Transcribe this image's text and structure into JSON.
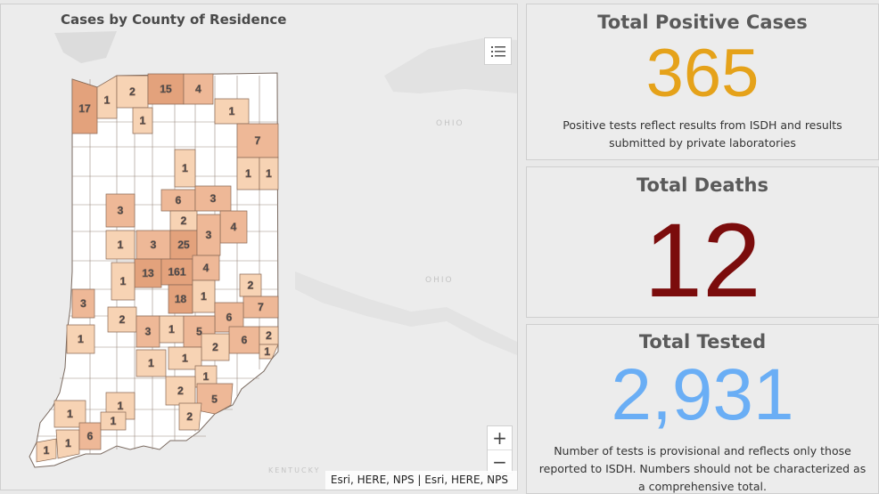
{
  "map": {
    "title": "Cases by County of Residence",
    "attribution": "Esri, HERE, NPS | Esri, HERE, NPS",
    "labels": [
      "OHIO",
      "OHIO",
      "KENTUCKY"
    ],
    "zoom_in": "+",
    "zoom_out": "−",
    "colors": {
      "zero": "#ffffff",
      "low": "#f7d3b4",
      "mid": "#eeb897",
      "high": "#e3a27c",
      "border": "#8a6a55"
    },
    "county_counts": [
      "17",
      "1",
      "2",
      "15",
      "4",
      "1",
      "1",
      "7",
      "1",
      "1",
      "1",
      "6",
      "3",
      "3",
      "2",
      "4",
      "1",
      "3",
      "25",
      "3",
      "13",
      "161",
      "4",
      "1",
      "18",
      "1",
      "2",
      "3",
      "7",
      "2",
      "6",
      "3",
      "1",
      "1",
      "5",
      "6",
      "2",
      "1",
      "2",
      "1",
      "1",
      "1",
      "1",
      "1",
      "2",
      "5",
      "2",
      "1",
      "6",
      "1",
      "1"
    ]
  },
  "cards": {
    "positive": {
      "title": "Total Positive Cases",
      "value": "365",
      "color": "#e5a21a",
      "desc": "Positive tests reflect results from ISDH and results submitted by private laboratories"
    },
    "deaths": {
      "title": "Total Deaths",
      "value": "12",
      "color": "#7b0c0c"
    },
    "tested": {
      "title": "Total Tested",
      "value": "2,931",
      "color": "#6aaef5",
      "desc": "Number of tests is provisional and reflects only those reported to ISDH. Numbers should not be characterized as a comprehensive total."
    }
  }
}
